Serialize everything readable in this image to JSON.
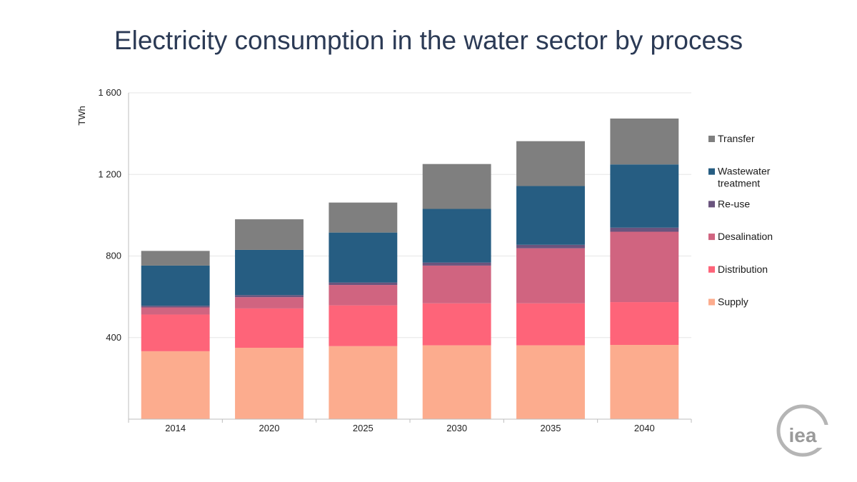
{
  "title": "Electricity consumption in the water sector by process",
  "logo_text": "iea",
  "chart_data": {
    "type": "bar",
    "stacked": true,
    "title": "Electricity consumption in the water sector by process",
    "ylabel": "TWh",
    "xlabel": "",
    "ylim": [
      0,
      1600
    ],
    "yticks": [
      400,
      800,
      1200,
      1600
    ],
    "ytick_labels": [
      "400",
      "800",
      "1 200",
      "1 600"
    ],
    "grid": true,
    "legend_position": "right",
    "categories": [
      "2014",
      "2020",
      "2025",
      "2030",
      "2035",
      "2040"
    ],
    "series": [
      {
        "name": "Supply",
        "color": "#fcac8e",
        "values": [
          333,
          350,
          358,
          362,
          362,
          364
        ]
      },
      {
        "name": "Distribution",
        "color": "#fe6479",
        "values": [
          180,
          193,
          200,
          206,
          206,
          210
        ]
      },
      {
        "name": "Desalination",
        "color": "#d06480",
        "values": [
          35,
          55,
          100,
          185,
          270,
          345
        ]
      },
      {
        "name": "Re-use",
        "color": "#6a547e",
        "values": [
          8,
          10,
          12,
          15,
          17,
          20
        ]
      },
      {
        "name": "Wastewater treatment",
        "color": "#265d82",
        "values": [
          197,
          222,
          245,
          263,
          288,
          310
        ]
      },
      {
        "name": "Transfer",
        "color": "#7f7f7f",
        "values": [
          72,
          150,
          147,
          220,
          220,
          225
        ]
      }
    ],
    "legend_order": [
      "Transfer",
      "Wastewater treatment",
      "Re-use",
      "Desalination",
      "Distribution",
      "Supply"
    ]
  }
}
